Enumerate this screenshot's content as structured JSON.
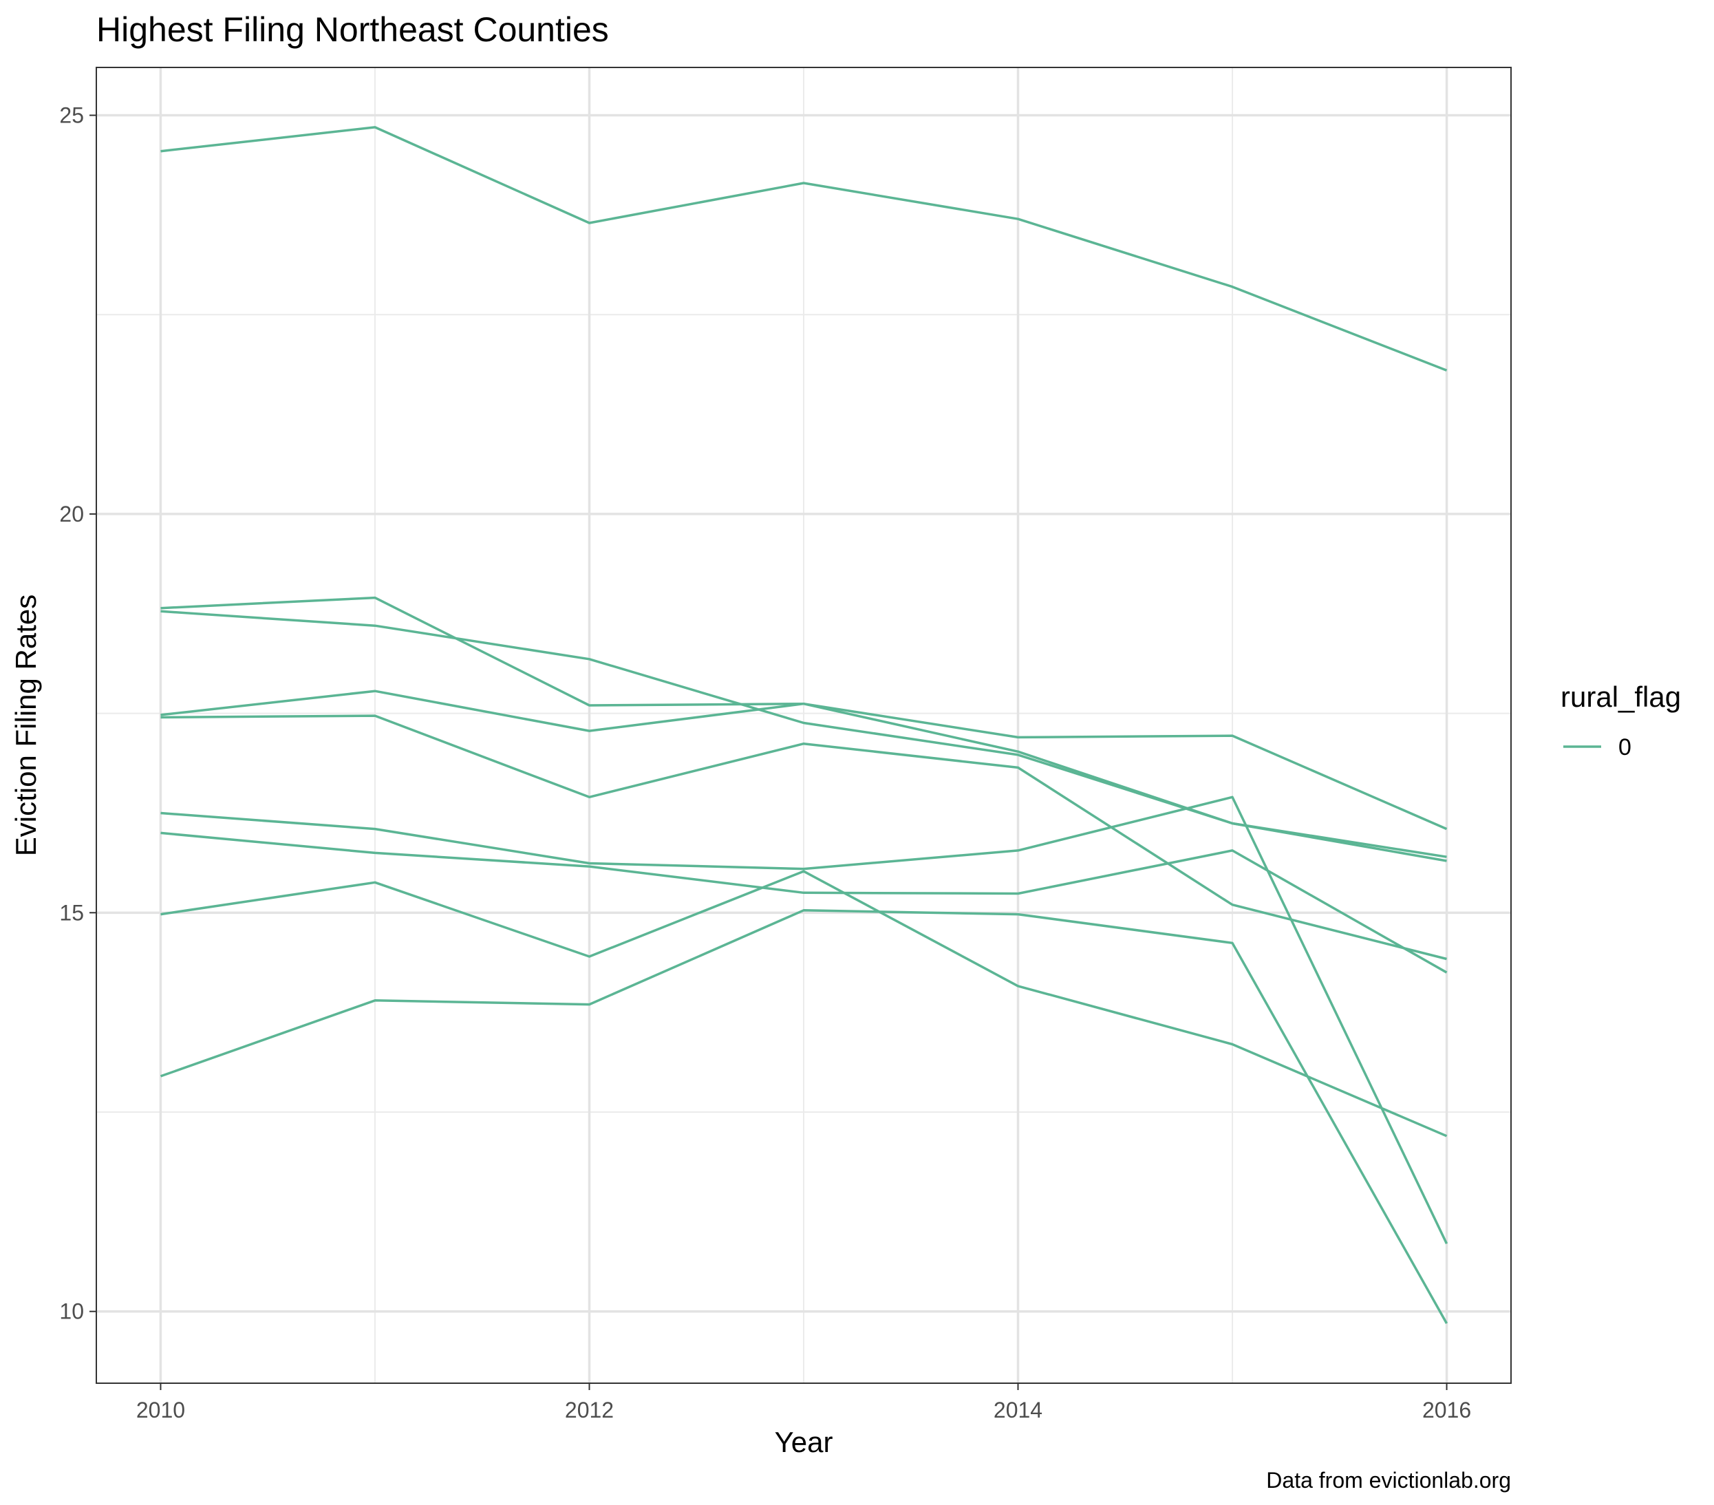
{
  "chart_data": {
    "type": "line",
    "title": "Highest Filing Northeast Counties",
    "xlabel": "Year",
    "ylabel": "Eviction Filing Rates",
    "caption": "Data from evictionlab.org",
    "x": [
      2010,
      2011,
      2012,
      2013,
      2014,
      2015,
      2016
    ],
    "x_ticks": [
      "2010",
      "2012",
      "2014",
      "2016"
    ],
    "y_ticks": [
      "10",
      "15",
      "20",
      "25"
    ],
    "xlim": [
      2009.7,
      2016.3
    ],
    "ylim": [
      9.1,
      25.6
    ],
    "grid": true,
    "legend": {
      "title": "rural_flag",
      "labels": [
        "0"
      ],
      "position": "right"
    },
    "line_color": "#5BB594",
    "series": [
      {
        "values": [
          24.55,
          24.85,
          23.65,
          24.15,
          23.7,
          22.85,
          21.8
        ]
      },
      {
        "values": [
          18.82,
          18.95,
          17.6,
          17.62,
          17.2,
          17.22,
          16.05
        ]
      },
      {
        "values": [
          18.78,
          18.6,
          18.18,
          17.38,
          16.98,
          16.12,
          15.65
        ]
      },
      {
        "values": [
          17.48,
          17.78,
          17.28,
          17.62,
          17.02,
          16.12,
          15.7
        ]
      },
      {
        "values": [
          17.45,
          17.47,
          16.45,
          17.12,
          16.82,
          15.1,
          14.42
        ]
      },
      {
        "values": [
          16.25,
          16.05,
          15.62,
          15.55,
          15.78,
          16.45,
          10.85
        ]
      },
      {
        "values": [
          16.0,
          15.75,
          15.58,
          15.25,
          15.24,
          15.78,
          14.25
        ]
      },
      {
        "values": [
          14.98,
          15.38,
          14.45,
          15.52,
          14.08,
          13.35,
          12.2
        ]
      },
      {
        "values": [
          12.95,
          13.9,
          13.85,
          15.03,
          14.98,
          14.62,
          9.85
        ]
      }
    ]
  }
}
